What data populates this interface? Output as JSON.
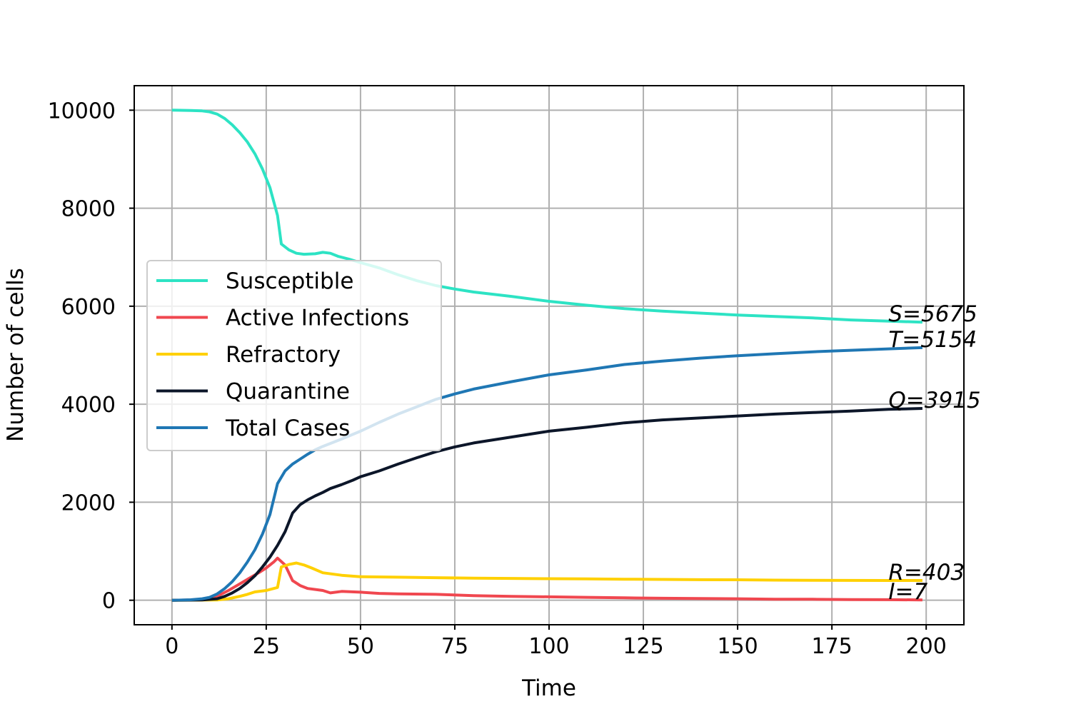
{
  "chart_data": {
    "type": "line",
    "title": "",
    "xlabel": "Time",
    "ylabel": "Number of cells",
    "xlim": [
      -10,
      210
    ],
    "ylim": [
      -500,
      10500
    ],
    "xticks": [
      0,
      25,
      50,
      75,
      100,
      125,
      150,
      175,
      200
    ],
    "yticks": [
      0,
      2000,
      4000,
      6000,
      8000,
      10000
    ],
    "grid": true,
    "legend_position": "center-left",
    "series": [
      {
        "name": "Susceptible",
        "color": "#2de3c4",
        "end_label": "S=5675",
        "points": [
          [
            0,
            10000
          ],
          [
            5,
            9995
          ],
          [
            8,
            9985
          ],
          [
            10,
            9965
          ],
          [
            12,
            9920
          ],
          [
            14,
            9830
          ],
          [
            16,
            9700
          ],
          [
            18,
            9540
          ],
          [
            20,
            9350
          ],
          [
            22,
            9110
          ],
          [
            24,
            8800
          ],
          [
            26,
            8420
          ],
          [
            28,
            7850
          ],
          [
            29,
            7270
          ],
          [
            31,
            7150
          ],
          [
            33,
            7080
          ],
          [
            35,
            7060
          ],
          [
            38,
            7070
          ],
          [
            40,
            7100
          ],
          [
            42,
            7080
          ],
          [
            44,
            7020
          ],
          [
            47,
            6960
          ],
          [
            50,
            6890
          ],
          [
            55,
            6780
          ],
          [
            60,
            6640
          ],
          [
            65,
            6520
          ],
          [
            70,
            6420
          ],
          [
            75,
            6350
          ],
          [
            80,
            6290
          ],
          [
            90,
            6200
          ],
          [
            100,
            6100
          ],
          [
            110,
            6020
          ],
          [
            120,
            5950
          ],
          [
            130,
            5900
          ],
          [
            140,
            5860
          ],
          [
            150,
            5820
          ],
          [
            160,
            5790
          ],
          [
            170,
            5760
          ],
          [
            180,
            5720
          ],
          [
            190,
            5695
          ],
          [
            199,
            5675
          ]
        ]
      },
      {
        "name": "Active Infections",
        "color": "#f0474f",
        "end_label": "I=7",
        "points": [
          [
            0,
            0
          ],
          [
            6,
            5
          ],
          [
            9,
            20
          ],
          [
            11,
            50
          ],
          [
            13,
            120
          ],
          [
            15,
            200
          ],
          [
            17,
            290
          ],
          [
            19,
            380
          ],
          [
            21,
            470
          ],
          [
            23,
            560
          ],
          [
            25,
            660
          ],
          [
            27,
            780
          ],
          [
            28,
            860
          ],
          [
            30,
            720
          ],
          [
            32,
            400
          ],
          [
            34,
            300
          ],
          [
            36,
            240
          ],
          [
            40,
            200
          ],
          [
            42,
            150
          ],
          [
            45,
            180
          ],
          [
            50,
            165
          ],
          [
            55,
            140
          ],
          [
            60,
            130
          ],
          [
            70,
            120
          ],
          [
            80,
            95
          ],
          [
            90,
            80
          ],
          [
            100,
            70
          ],
          [
            110,
            60
          ],
          [
            120,
            50
          ],
          [
            130,
            40
          ],
          [
            140,
            35
          ],
          [
            150,
            30
          ],
          [
            160,
            22
          ],
          [
            170,
            20
          ],
          [
            180,
            15
          ],
          [
            190,
            12
          ],
          [
            199,
            7
          ]
        ]
      },
      {
        "name": "Refractory",
        "color": "#ffd000",
        "end_label": "R=403",
        "points": [
          [
            0,
            0
          ],
          [
            12,
            5
          ],
          [
            15,
            30
          ],
          [
            18,
            80
          ],
          [
            20,
            120
          ],
          [
            22,
            170
          ],
          [
            25,
            200
          ],
          [
            28,
            260
          ],
          [
            29,
            680
          ],
          [
            31,
            730
          ],
          [
            33,
            760
          ],
          [
            35,
            720
          ],
          [
            37,
            660
          ],
          [
            40,
            560
          ],
          [
            45,
            510
          ],
          [
            50,
            480
          ],
          [
            60,
            470
          ],
          [
            70,
            460
          ],
          [
            80,
            450
          ],
          [
            90,
            445
          ],
          [
            100,
            440
          ],
          [
            110,
            435
          ],
          [
            120,
            430
          ],
          [
            130,
            425
          ],
          [
            140,
            420
          ],
          [
            150,
            418
          ],
          [
            160,
            410
          ],
          [
            170,
            408
          ],
          [
            180,
            405
          ],
          [
            190,
            404
          ],
          [
            199,
            403
          ]
        ]
      },
      {
        "name": "Quarantine",
        "color": "#0c1629",
        "end_label": "Q=3915",
        "points": [
          [
            0,
            0
          ],
          [
            8,
            5
          ],
          [
            12,
            30
          ],
          [
            14,
            80
          ],
          [
            16,
            150
          ],
          [
            18,
            240
          ],
          [
            20,
            360
          ],
          [
            22,
            500
          ],
          [
            24,
            680
          ],
          [
            26,
            880
          ],
          [
            28,
            1120
          ],
          [
            30,
            1400
          ],
          [
            32,
            1780
          ],
          [
            34,
            1950
          ],
          [
            36,
            2050
          ],
          [
            38,
            2130
          ],
          [
            40,
            2200
          ],
          [
            42,
            2280
          ],
          [
            45,
            2360
          ],
          [
            48,
            2450
          ],
          [
            50,
            2520
          ],
          [
            55,
            2640
          ],
          [
            60,
            2780
          ],
          [
            65,
            2910
          ],
          [
            70,
            3030
          ],
          [
            75,
            3130
          ],
          [
            80,
            3210
          ],
          [
            90,
            3330
          ],
          [
            100,
            3450
          ],
          [
            110,
            3530
          ],
          [
            120,
            3620
          ],
          [
            130,
            3680
          ],
          [
            140,
            3720
          ],
          [
            150,
            3760
          ],
          [
            160,
            3800
          ],
          [
            170,
            3830
          ],
          [
            180,
            3860
          ],
          [
            190,
            3895
          ],
          [
            199,
            3915
          ]
        ]
      },
      {
        "name": "Total Cases",
        "color": "#1f77b4",
        "end_label": "T=5154",
        "points": [
          [
            0,
            0
          ],
          [
            5,
            10
          ],
          [
            8,
            30
          ],
          [
            10,
            60
          ],
          [
            12,
            130
          ],
          [
            14,
            240
          ],
          [
            16,
            380
          ],
          [
            18,
            560
          ],
          [
            20,
            780
          ],
          [
            22,
            1030
          ],
          [
            24,
            1350
          ],
          [
            26,
            1750
          ],
          [
            28,
            2380
          ],
          [
            30,
            2640
          ],
          [
            32,
            2780
          ],
          [
            34,
            2880
          ],
          [
            36,
            2980
          ],
          [
            38,
            3070
          ],
          [
            40,
            3140
          ],
          [
            45,
            3290
          ],
          [
            50,
            3450
          ],
          [
            55,
            3630
          ],
          [
            60,
            3800
          ],
          [
            65,
            3950
          ],
          [
            70,
            4100
          ],
          [
            75,
            4210
          ],
          [
            80,
            4310
          ],
          [
            90,
            4460
          ],
          [
            100,
            4600
          ],
          [
            110,
            4700
          ],
          [
            120,
            4810
          ],
          [
            130,
            4880
          ],
          [
            140,
            4940
          ],
          [
            150,
            4990
          ],
          [
            160,
            5030
          ],
          [
            170,
            5070
          ],
          [
            180,
            5100
          ],
          [
            190,
            5130
          ],
          [
            199,
            5154
          ]
        ]
      }
    ]
  }
}
